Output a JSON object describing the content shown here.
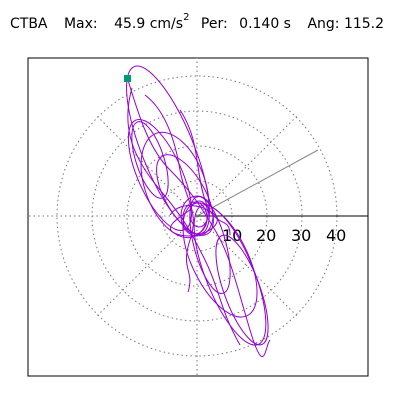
{
  "header": {
    "station": "CTBA",
    "max_label": "Max:",
    "max_value": "45.9",
    "max_unit": "cm/s",
    "max_unit_exp": "2",
    "per_label": "Per:",
    "per_value": "0.140 s",
    "ang_label": "Ang:",
    "ang_value": "115.2"
  },
  "plot": {
    "tick_labels": [
      "10",
      "20",
      "30",
      "40"
    ],
    "trace_color": "#9400d3",
    "marker_color": "#009977",
    "grid_color": "#777777",
    "angle_deg": 115.2
  }
}
